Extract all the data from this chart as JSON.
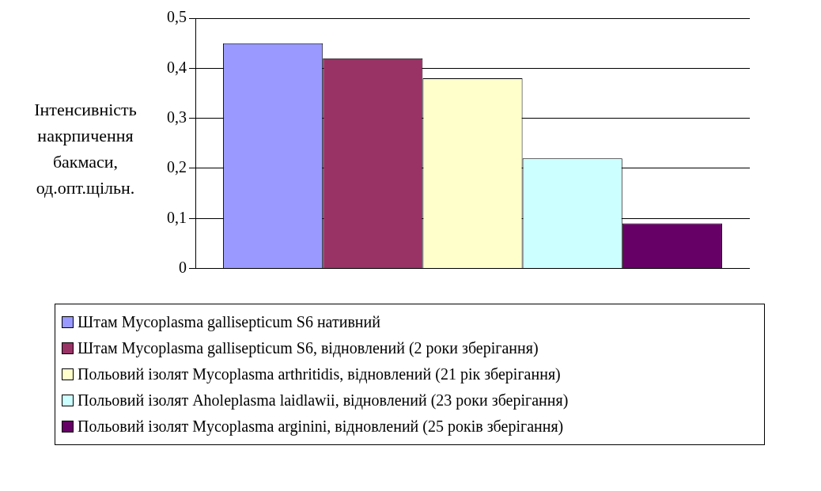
{
  "chart_data": {
    "type": "bar",
    "ylabel": "Інтенсивність накрпичення бакмаси, од.опт.щільн.",
    "categories": [
      null
    ],
    "series": [
      {
        "name": "Штам Mycoplasma gallisepticum S6 нативний",
        "color": "#9999ff",
        "values": [
          0.45
        ]
      },
      {
        "name": "Штам Mycoplasma gallisepticum S6, відновлений (2 роки зберігання)",
        "color": "#993366",
        "values": [
          0.42
        ]
      },
      {
        "name": "Польовий ізолят Mycoplasma arthritidis, відновлений (21 рік зберігання)",
        "color": "#ffffcc",
        "values": [
          0.38
        ]
      },
      {
        "name": "Польовий ізолят Aholeplasma laidlawii, відновлений (23 роки зберігання)",
        "color": "#ccffff",
        "values": [
          0.22
        ]
      },
      {
        "name": "Польовий ізолят Mycoplasma arginini, відновлений (25 років зберігання)",
        "color": "#660066",
        "values": [
          0.09
        ]
      }
    ],
    "ylim": [
      0,
      0.5
    ],
    "yticks": [
      {
        "value": 0,
        "label": "0"
      },
      {
        "value": 0.1,
        "label": "0,1"
      },
      {
        "value": 0.2,
        "label": "0,2"
      },
      {
        "value": 0.3,
        "label": "0,3"
      },
      {
        "value": 0.4,
        "label": "0,4"
      },
      {
        "value": 0.5,
        "label": "0,5"
      }
    ],
    "grid": "y",
    "legend": "bottom"
  }
}
